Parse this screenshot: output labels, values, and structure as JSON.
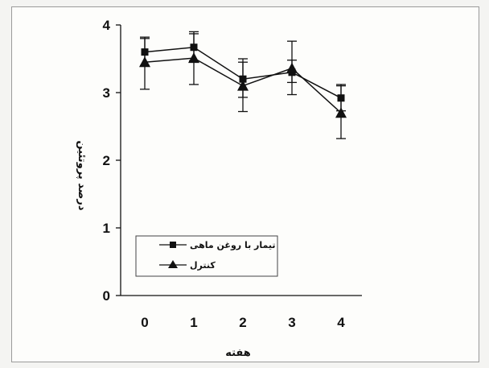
{
  "chart_data": {
    "type": "line",
    "xlabel": "هفته",
    "ylabel": "درصد پروتئین",
    "x": [
      0,
      1,
      2,
      3,
      4
    ],
    "xticks": [
      "0",
      "1",
      "2",
      "3",
      "4"
    ],
    "yticks": [
      "0",
      "1",
      "2",
      "3",
      "4"
    ],
    "ylim": [
      0,
      4
    ],
    "grid": false,
    "legend_position": "bottom-left",
    "series": [
      {
        "name": "تیمار با روغن ماهی",
        "marker": "square",
        "values": [
          3.6,
          3.67,
          3.2,
          3.3,
          2.92
        ],
        "error_high": [
          3.82,
          3.9,
          3.5,
          3.48,
          3.12
        ],
        "error_low": [
          3.4,
          3.47,
          2.93,
          3.15,
          2.73
        ],
        "color": "#111111"
      },
      {
        "name": "کنترل",
        "marker": "triangle",
        "values": [
          3.45,
          3.51,
          3.1,
          3.36,
          2.7
        ],
        "error_high": [
          3.8,
          3.87,
          3.45,
          3.76,
          3.1
        ],
        "error_low": [
          3.05,
          3.12,
          2.72,
          2.97,
          2.32
        ],
        "color": "#111111"
      }
    ]
  }
}
